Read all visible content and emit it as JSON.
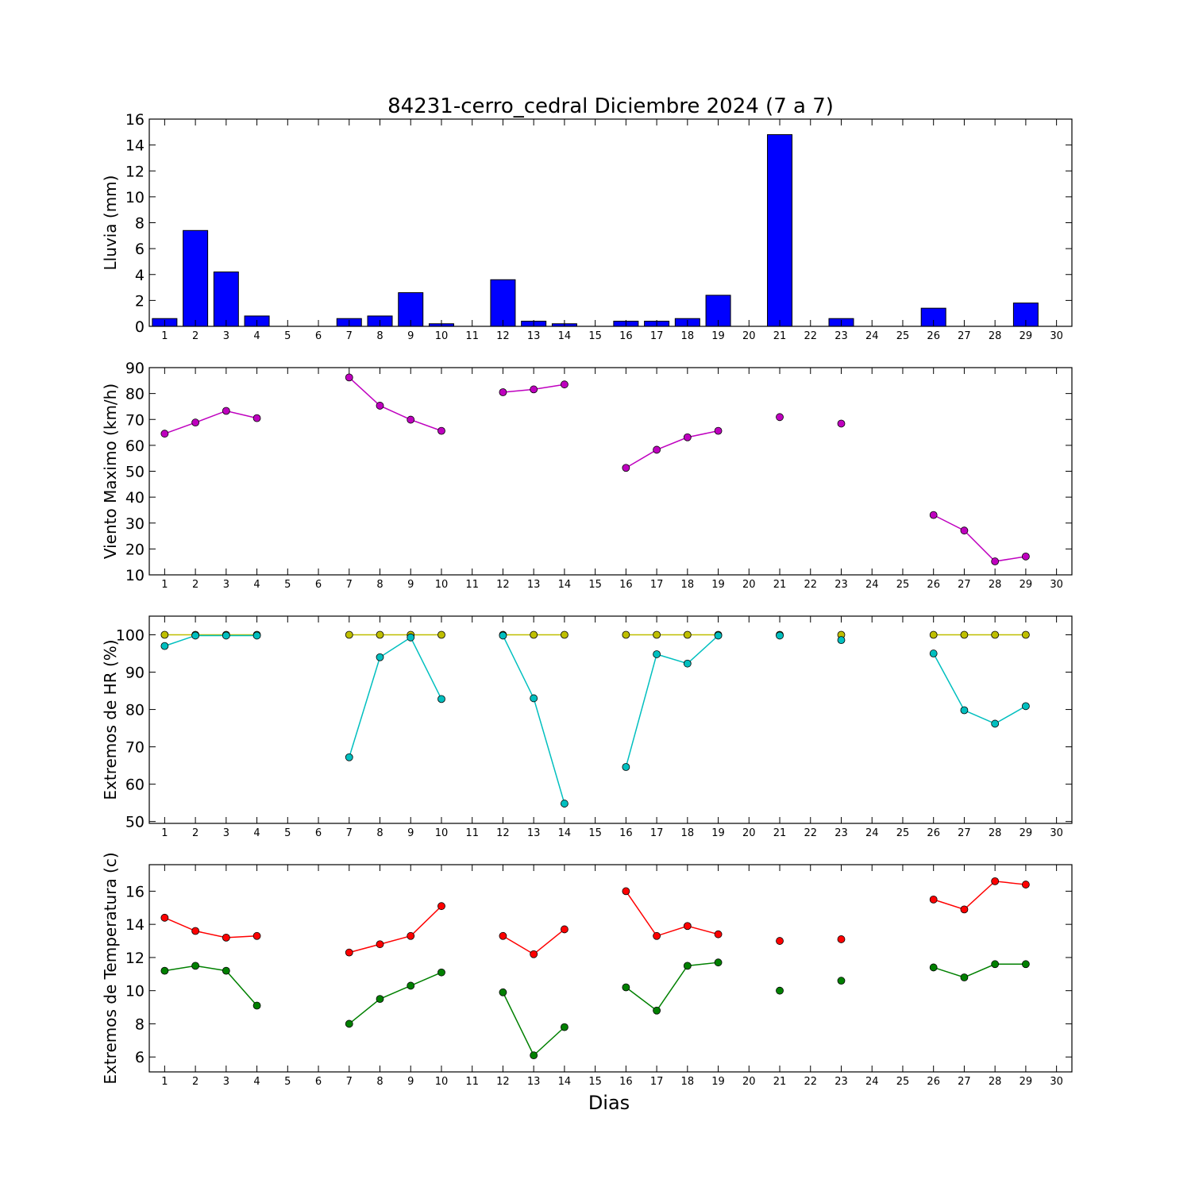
{
  "chart_data": [
    {
      "type": "bar",
      "title": "84231-cerro_cedral Diciembre 2024  (7 a 7)",
      "ylabel": "Lluvia (mm)",
      "xlabel": "",
      "ylim": [
        0,
        16
      ],
      "yticks": [
        0,
        2,
        4,
        6,
        8,
        10,
        12,
        14,
        16
      ],
      "x_ticks": [
        1,
        2,
        3,
        4,
        5,
        6,
        7,
        8,
        9,
        10,
        11,
        12,
        13,
        14,
        15,
        16,
        17,
        18,
        19,
        20,
        21,
        22,
        23,
        24,
        25,
        26,
        27,
        28,
        29,
        30
      ],
      "grid": false,
      "series": [
        {
          "color": "#0000ff",
          "x": [
            1,
            2,
            3,
            4,
            5,
            6,
            7,
            8,
            9,
            10,
            11,
            12,
            13,
            14,
            15,
            16,
            17,
            18,
            19,
            20,
            21,
            22,
            23,
            24,
            25,
            26,
            27,
            28,
            29
          ],
          "values": [
            0.6,
            7.4,
            4.2,
            0.8,
            0,
            0,
            0.6,
            0.8,
            2.6,
            0.2,
            0,
            3.6,
            0.4,
            0.2,
            0,
            0.4,
            0.4,
            0.6,
            2.4,
            0,
            14.8,
            0,
            0.6,
            0,
            0,
            1.4,
            0,
            0,
            1.8
          ]
        }
      ]
    },
    {
      "type": "line",
      "title": "",
      "ylabel": "Viento Maximo (km/h)",
      "xlabel": "",
      "ylim": [
        10,
        90
      ],
      "yticks": [
        10,
        20,
        30,
        40,
        50,
        60,
        70,
        80,
        90
      ],
      "x_ticks": [
        1,
        2,
        3,
        4,
        5,
        6,
        7,
        8,
        9,
        10,
        11,
        12,
        13,
        14,
        15,
        16,
        17,
        18,
        19,
        20,
        21,
        22,
        23,
        24,
        25,
        26,
        27,
        28,
        29,
        30
      ],
      "grid": false,
      "series": [
        {
          "color": "#bf00bf",
          "x": [
            1,
            2,
            3,
            4,
            5,
            6,
            7,
            8,
            9,
            10,
            11,
            12,
            13,
            14,
            15,
            16,
            17,
            18,
            19,
            20,
            21,
            22,
            23,
            24,
            25,
            26,
            27,
            28,
            29
          ],
          "values": [
            64.5,
            68.8,
            73.3,
            70.5,
            null,
            null,
            86.2,
            75.3,
            69.9,
            65.6,
            null,
            80.5,
            81.6,
            83.5,
            null,
            51.3,
            58.3,
            63.1,
            65.6,
            null,
            70.9,
            null,
            68.4,
            null,
            null,
            33.1,
            27.1,
            15.2,
            17.1
          ]
        }
      ]
    },
    {
      "type": "line",
      "title": "",
      "ylabel": "Extremos de HR (%)",
      "xlabel": "",
      "ylim": [
        49.5,
        105
      ],
      "yticks": [
        50,
        60,
        70,
        80,
        90,
        100
      ],
      "x_ticks": [
        1,
        2,
        3,
        4,
        5,
        6,
        7,
        8,
        9,
        10,
        11,
        12,
        13,
        14,
        15,
        16,
        17,
        18,
        19,
        20,
        21,
        22,
        23,
        24,
        25,
        26,
        27,
        28,
        29,
        30
      ],
      "grid": false,
      "series": [
        {
          "color": "#bfbf00",
          "x": [
            1,
            2,
            3,
            4,
            5,
            6,
            7,
            8,
            9,
            10,
            11,
            12,
            13,
            14,
            15,
            16,
            17,
            18,
            19,
            20,
            21,
            22,
            23,
            24,
            25,
            26,
            27,
            28,
            29
          ],
          "values": [
            100,
            100,
            100,
            100,
            null,
            null,
            100,
            100,
            100,
            100,
            null,
            100,
            100,
            100,
            null,
            100,
            100,
            100,
            100,
            null,
            100,
            null,
            100,
            null,
            null,
            100,
            100,
            100,
            100
          ]
        },
        {
          "color": "#00bfbf",
          "x": [
            1,
            2,
            3,
            4,
            5,
            6,
            7,
            8,
            9,
            10,
            11,
            12,
            13,
            14,
            15,
            16,
            17,
            18,
            19,
            20,
            21,
            22,
            23,
            24,
            25,
            26,
            27,
            28,
            29
          ],
          "values": [
            97,
            99.8,
            99.8,
            99.8,
            null,
            null,
            67.2,
            94,
            99.3,
            82.8,
            null,
            99.8,
            83,
            54.8,
            null,
            64.6,
            94.8,
            92.3,
            99.8,
            null,
            99.8,
            null,
            98.6,
            null,
            null,
            95,
            79.8,
            76.2,
            80.9
          ]
        }
      ]
    },
    {
      "type": "line",
      "title": "",
      "ylabel": "Extremos de Temperatura (c)",
      "xlabel": "Dias",
      "ylim": [
        5.1,
        17.6
      ],
      "yticks": [
        6,
        8,
        10,
        12,
        14,
        16
      ],
      "x_ticks": [
        1,
        2,
        3,
        4,
        5,
        6,
        7,
        8,
        9,
        10,
        11,
        12,
        13,
        14,
        15,
        16,
        17,
        18,
        19,
        20,
        21,
        22,
        23,
        24,
        25,
        26,
        27,
        28,
        29,
        30
      ],
      "grid": false,
      "series": [
        {
          "color": "#ff0000",
          "x": [
            1,
            2,
            3,
            4,
            5,
            6,
            7,
            8,
            9,
            10,
            11,
            12,
            13,
            14,
            15,
            16,
            17,
            18,
            19,
            20,
            21,
            22,
            23,
            24,
            25,
            26,
            27,
            28,
            29
          ],
          "values": [
            14.4,
            13.6,
            13.2,
            13.3,
            null,
            null,
            12.3,
            12.8,
            13.3,
            15.1,
            null,
            13.3,
            12.2,
            13.7,
            null,
            16,
            13.3,
            13.9,
            13.4,
            null,
            13,
            null,
            13.1,
            null,
            null,
            15.5,
            14.9,
            16.6,
            16.4
          ]
        },
        {
          "color": "#008000",
          "x": [
            1,
            2,
            3,
            4,
            5,
            6,
            7,
            8,
            9,
            10,
            11,
            12,
            13,
            14,
            15,
            16,
            17,
            18,
            19,
            20,
            21,
            22,
            23,
            24,
            25,
            26,
            27,
            28,
            29
          ],
          "values": [
            11.2,
            11.5,
            11.2,
            9.1,
            null,
            null,
            8,
            9.5,
            10.3,
            11.1,
            null,
            9.9,
            6.1,
            7.8,
            null,
            10.2,
            8.8,
            11.5,
            11.7,
            null,
            10,
            null,
            10.6,
            null,
            null,
            11.4,
            10.8,
            11.6,
            11.6
          ]
        }
      ]
    }
  ]
}
